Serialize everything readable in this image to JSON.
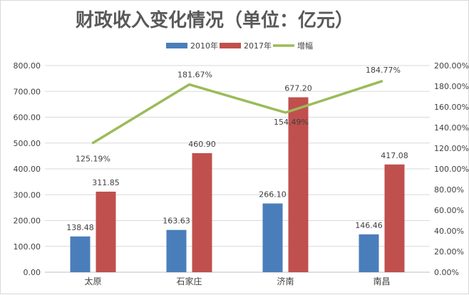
{
  "chart_data": {
    "type": "bar+line",
    "title": "财政收入变化情况（单位：亿元）",
    "categories": [
      "太原",
      "石家庄",
      "济南",
      "南昌"
    ],
    "series": [
      {
        "name": "2010年",
        "type": "bar",
        "axis": "left",
        "values": [
          138.48,
          163.63,
          266.1,
          146.46
        ],
        "labels": [
          "138.48",
          "163.63",
          "266.10",
          "146.46"
        ],
        "color": "#4a7ebb"
      },
      {
        "name": "2017年",
        "type": "bar",
        "axis": "left",
        "values": [
          311.85,
          460.9,
          677.2,
          417.08
        ],
        "labels": [
          "311.85",
          "460.90",
          "677.20",
          "417.08"
        ],
        "color": "#c0504d"
      },
      {
        "name": "增幅",
        "type": "line",
        "axis": "right",
        "values": [
          125.19,
          181.67,
          154.49,
          184.77
        ],
        "labels": [
          "125.19%",
          "181.67%",
          "154.49%",
          "184.77%"
        ],
        "color": "#9bbb59"
      }
    ],
    "y_left": {
      "min": 0,
      "max": 800,
      "step": 100,
      "ticks": [
        "0.00",
        "100.00",
        "200.00",
        "300.00",
        "400.00",
        "500.00",
        "600.00",
        "700.00",
        "800.00"
      ]
    },
    "y_right": {
      "min": 0,
      "max": 200,
      "step": 20,
      "ticks": [
        "0.00%",
        "20.00%",
        "40.00%",
        "60.00%",
        "80.00%",
        "100.00%",
        "120.00%",
        "140.00%",
        "160.00%",
        "180.00%",
        "200.00%"
      ]
    },
    "grid": true,
    "legend_position": "top"
  }
}
